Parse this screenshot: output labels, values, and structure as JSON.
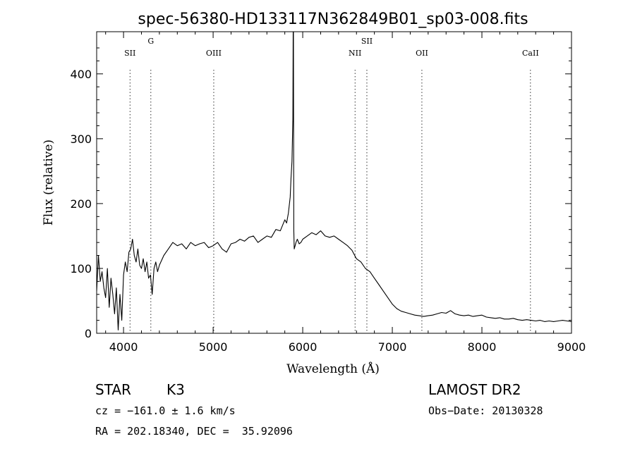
{
  "chart_data": {
    "type": "line",
    "title": "spec-56380-HD133117N362849B01_sp03-008.fits",
    "xlabel": "Wavelength (Å)",
    "ylabel": "Flux (relative)",
    "xlim": [
      3700,
      9000
    ],
    "ylim": [
      0,
      465
    ],
    "x_ticks": [
      4000,
      5000,
      6000,
      7000,
      8000,
      9000
    ],
    "y_ticks": [
      0,
      100,
      200,
      300,
      400
    ],
    "grid": false,
    "legend": "none",
    "line_color": "#000000",
    "series": [
      {
        "x": [
          3700,
          3720,
          3740,
          3760,
          3780,
          3800,
          3820,
          3840,
          3860,
          3880,
          3900,
          3920,
          3940,
          3960,
          3980,
          4000,
          4020,
          4040,
          4060,
          4080,
          4100,
          4120,
          4140,
          4160,
          4180,
          4200,
          4220,
          4240,
          4260,
          4280,
          4300,
          4320,
          4340,
          4360,
          4380,
          4400,
          4450,
          4500,
          4550,
          4600,
          4650,
          4700,
          4750,
          4800,
          4850,
          4900,
          4950,
          5000,
          5050,
          5100,
          5150,
          5200,
          5250,
          5300,
          5350,
          5400,
          5450,
          5500,
          5550,
          5600,
          5650,
          5700,
          5750,
          5800,
          5820,
          5840,
          5860,
          5870,
          5880,
          5890,
          5893,
          5896,
          5900,
          5905,
          5915,
          5925,
          5940,
          5960,
          5980,
          6000,
          6050,
          6100,
          6150,
          6200,
          6250,
          6300,
          6350,
          6400,
          6450,
          6500,
          6550,
          6600,
          6650,
          6700,
          6750,
          6800,
          6850,
          6900,
          6950,
          7000,
          7050,
          7100,
          7150,
          7200,
          7250,
          7300,
          7350,
          7400,
          7450,
          7500,
          7550,
          7600,
          7650,
          7700,
          7750,
          7800,
          7850,
          7900,
          7950,
          8000,
          8050,
          8100,
          8150,
          8200,
          8250,
          8300,
          8350,
          8400,
          8450,
          8500,
          8550,
          8600,
          8650,
          8700,
          8750,
          8800,
          8850,
          8900,
          8950,
          9000
        ],
        "y": [
          65,
          120,
          80,
          95,
          70,
          55,
          100,
          40,
          85,
          60,
          30,
          70,
          5,
          60,
          20,
          90,
          110,
          95,
          125,
          130,
          145,
          120,
          110,
          130,
          105,
          100,
          115,
          95,
          110,
          85,
          90,
          60,
          100,
          110,
          95,
          105,
          120,
          130,
          140,
          135,
          138,
          130,
          140,
          135,
          138,
          140,
          132,
          135,
          140,
          130,
          125,
          138,
          140,
          145,
          142,
          148,
          150,
          140,
          145,
          150,
          148,
          160,
          158,
          175,
          170,
          185,
          210,
          240,
          265,
          330,
          465,
          465,
          160,
          130,
          135,
          140,
          145,
          138,
          140,
          145,
          150,
          155,
          152,
          158,
          150,
          148,
          150,
          145,
          140,
          135,
          128,
          115,
          110,
          100,
          95,
          85,
          75,
          65,
          55,
          45,
          38,
          34,
          32,
          30,
          28,
          27,
          26,
          27,
          28,
          30,
          32,
          31,
          35,
          30,
          28,
          27,
          28,
          26,
          27,
          28,
          25,
          24,
          23,
          24,
          22,
          22,
          23,
          21,
          20,
          21,
          20,
          19,
          20,
          18,
          19,
          18,
          19,
          20,
          19,
          18
        ]
      }
    ],
    "line_markers": [
      {
        "label": "SII",
        "x": 4072
      },
      {
        "label": "G",
        "x": 4305
      },
      {
        "label": "OIII",
        "x": 5007
      },
      {
        "label": "NII",
        "x": 6584
      },
      {
        "label": "SII",
        "x": 6716
      },
      {
        "label": "OII",
        "x": 7330
      },
      {
        "label": "CaII",
        "x": 8542
      }
    ]
  },
  "info": {
    "object_class": "STAR",
    "subclass": "K3",
    "survey": "LAMOST DR2",
    "cz_text": "cz = −161.0 ± 1.6 km/s",
    "obs_date_text": "Obs−Date: 20130328",
    "coords_text": "RA = 202.18340, DEC =  35.92096"
  }
}
